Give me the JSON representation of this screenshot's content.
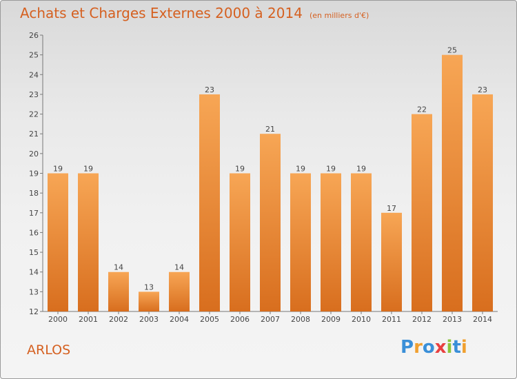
{
  "title": "Achats et Charges Externes 2000 à 2014",
  "subtitle": "(en milliers d'€)",
  "footer_label": "ARLOS",
  "logo": {
    "text": "Proxiti",
    "letters": [
      {
        "ch": "P",
        "color": "#3a8fd8"
      },
      {
        "ch": "r",
        "color": "#f0a030"
      },
      {
        "ch": "o",
        "color": "#3a8fd8"
      },
      {
        "ch": "x",
        "color": "#e84040"
      },
      {
        "ch": "i",
        "color": "#8cc43c"
      },
      {
        "ch": "t",
        "color": "#3a8fd8"
      },
      {
        "ch": "i",
        "color": "#f0a030"
      }
    ]
  },
  "colors": {
    "bar_light": "#f7a655",
    "bar_dark": "#d86e1e",
    "accent": "#d56020"
  },
  "chart_data": {
    "type": "bar",
    "categories": [
      "2000",
      "2001",
      "2002",
      "2003",
      "2004",
      "2005",
      "2006",
      "2007",
      "2008",
      "2009",
      "2010",
      "2011",
      "2012",
      "2013",
      "2014"
    ],
    "values": [
      19,
      19,
      14,
      13,
      14,
      23,
      19,
      21,
      19,
      19,
      19,
      17,
      22,
      25,
      23
    ],
    "ylim": [
      12,
      26
    ],
    "yticks": [
      12,
      13,
      14,
      15,
      16,
      17,
      18,
      19,
      20,
      21,
      22,
      23,
      24,
      25,
      26
    ],
    "grid": false,
    "data_labels": true
  }
}
